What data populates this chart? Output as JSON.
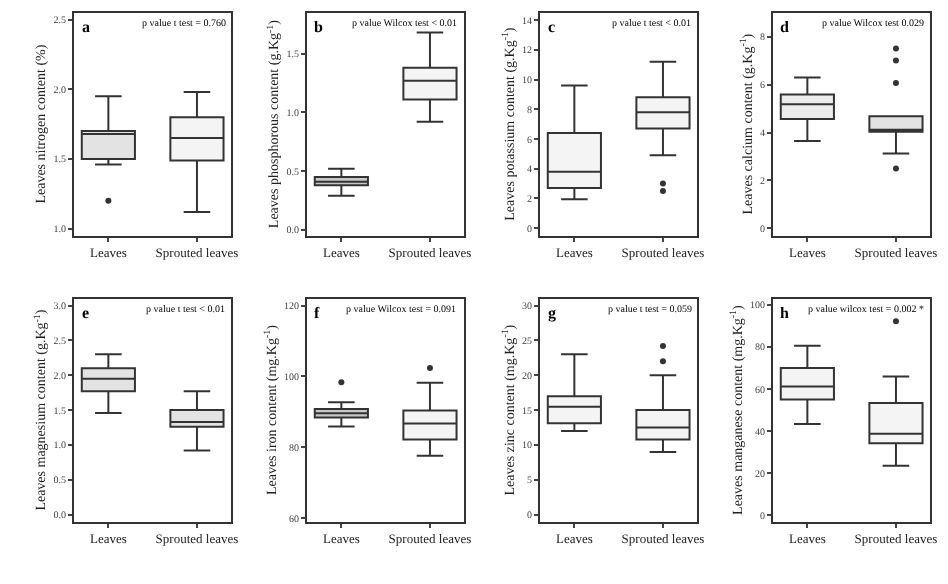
{
  "chart_data": [
    {
      "type": "box",
      "ylabel": "Leaves nitrogen content (%)",
      "annotations": [
        "a",
        "p value t test = 0.760"
      ],
      "categories": [
        "Leaves",
        "Sprouted leaves"
      ],
      "colors": [
        "#e3e3e3",
        "#f4f4f4"
      ],
      "ylim": [
        0.95,
        2.55
      ],
      "yticks": [
        {
          "value": 1.0,
          "label": "1.0"
        },
        1.5,
        {
          "value": 2.0,
          "label": "2.0"
        },
        2.5
      ],
      "boxes": [
        {
          "low": 1.46,
          "q1": 1.5,
          "median": 1.68,
          "q3": 1.7,
          "high": 1.95,
          "outliers": [
            1.2
          ]
        },
        {
          "low": 1.12,
          "q1": 1.49,
          "median": 1.65,
          "q3": 1.8,
          "high": 1.98
        }
      ]
    },
    {
      "type": "box",
      "ylabel": "Leaves phosphorous content (g.Kg$^{-1}$)",
      "annotations": [
        "b",
        "p value Wilcox test < 0.01"
      ],
      "categories": [
        "Leaves",
        "Sprouted leaves"
      ],
      "colors": [
        "#c8c8c8",
        "#f4f4f4"
      ],
      "ylim": [
        -0.05,
        1.85
      ],
      "yticks": [
        {
          "value": 0.0,
          "label": "0.0"
        },
        0.5,
        {
          "value": 1.0,
          "label": "1.0"
        },
        1.5
      ],
      "boxes": [
        {
          "low": 0.29,
          "q1": 0.38,
          "median": 0.41,
          "q3": 0.45,
          "high": 0.52
        },
        {
          "low": 0.92,
          "q1": 1.11,
          "median": 1.27,
          "q3": 1.38,
          "high": 1.68
        }
      ]
    },
    {
      "type": "box",
      "ylabel": "Leaves potassium content (g.Kg$^{-1}$)",
      "annotations": [
        "c",
        "p value t test < 0.01"
      ],
      "categories": [
        "Leaves",
        "Sprouted leaves"
      ],
      "colors": [
        "#f4f4f4",
        "#f4f4f4"
      ],
      "ylim": [
        -0.5,
        14.5
      ],
      "yticks": [
        0,
        2,
        4,
        6,
        8,
        10,
        12,
        14
      ],
      "boxes": [
        {
          "low": 1.95,
          "q1": 2.7,
          "median": 3.8,
          "q3": 6.4,
          "high": 9.6
        },
        {
          "low": 4.9,
          "q1": 6.7,
          "median": 7.8,
          "q3": 8.8,
          "high": 11.2,
          "outliers": [
            3.0,
            2.5
          ]
        }
      ]
    },
    {
      "type": "box",
      "ylabel": "Leaves calcium content (g.Kg$^{-1}$)",
      "annotations": [
        "d",
        "p value Wilcox test 0.029"
      ],
      "categories": [
        "Leaves",
        "Sprouted leaves"
      ],
      "colors": [
        "#ececec",
        "#e3e3e3"
      ],
      "ylim": [
        -0.3,
        9.0
      ],
      "yticks": [
        0,
        2,
        4,
        6,
        8
      ],
      "boxes": [
        {
          "low": 3.65,
          "q1": 4.56,
          "median": 5.18,
          "q3": 5.59,
          "high": 6.29
        },
        {
          "low": 3.12,
          "q1": 4.03,
          "median": 4.12,
          "q3": 4.68,
          "high": 4.68,
          "outliers": [
            2.5,
            6.06,
            7.0,
            7.5
          ]
        }
      ]
    },
    {
      "type": "box",
      "ylabel": "Leaves magnesium content (g.Kg$^{-1}$)",
      "annotations": [
        "e",
        "p value t test < 0.01"
      ],
      "categories": [
        "Leaves",
        "Sprouted leaves"
      ],
      "colors": [
        "#e3e3e3",
        "#e3e3e3"
      ],
      "ylim": [
        -0.1,
        3.1
      ],
      "yticks": [
        {
          "value": 0.0,
          "label": "0.0"
        },
        0.5,
        {
          "value": 1.0,
          "label": "1.0"
        },
        1.5,
        {
          "value": 2.0,
          "label": "2.0"
        },
        2.5,
        {
          "value": 3.0,
          "label": "3.0"
        }
      ],
      "boxes": [
        {
          "low": 1.46,
          "q1": 1.77,
          "median": 1.95,
          "q3": 2.1,
          "high": 2.3
        },
        {
          "low": 0.92,
          "q1": 1.26,
          "median": 1.33,
          "q3": 1.5,
          "high": 1.77
        }
      ]
    },
    {
      "type": "box",
      "ylabel": "Leaves iron content (mg.Kg$^{-1}$)",
      "annotations": [
        "f",
        "p value Wilcox test = 0.091"
      ],
      "categories": [
        "Leaves",
        "Sprouted leaves"
      ],
      "colors": [
        "#c8c8c8",
        "#f4f4f4"
      ],
      "ylim": [
        59,
        122
      ],
      "yticks": [
        60,
        80,
        100,
        120
      ],
      "boxes": [
        {
          "low": 85.9,
          "q1": 88.4,
          "median": 89.6,
          "q3": 90.8,
          "high": 92.7,
          "outliers": [
            98.4
          ]
        },
        {
          "low": 77.6,
          "q1": 82.2,
          "median": 86.7,
          "q3": 90.4,
          "high": 98.2,
          "outliers": [
            102.4
          ]
        }
      ]
    },
    {
      "type": "box",
      "ylabel": "Leaves zinc content (mg.Kg$^{-1}$)",
      "annotations": [
        "g",
        "p value t test = 0.059"
      ],
      "categories": [
        "Leaves",
        "Sprouted leaves"
      ],
      "colors": [
        "#f4f4f4",
        "#f4f4f4"
      ],
      "ylim": [
        -1,
        31
      ],
      "yticks": [
        0,
        5,
        10,
        15,
        20,
        25,
        30
      ],
      "boxes": [
        {
          "low": 12.0,
          "q1": 13.1,
          "median": 15.5,
          "q3": 17.0,
          "high": 23.0
        },
        {
          "low": 9.0,
          "q1": 10.8,
          "median": 12.5,
          "q3": 15.0,
          "high": 20.0,
          "outliers": [
            22.0,
            24.2
          ]
        }
      ]
    },
    {
      "type": "box",
      "ylabel": "Leaves manganese content (mg.Kg$^{-1}$)",
      "annotations": [
        "h",
        "p value wilcox test = 0.002 *"
      ],
      "categories": [
        "Leaves",
        "Sprouted leaves"
      ],
      "colors": [
        "#f4f4f4",
        "#f4f4f4"
      ],
      "ylim": [
        -3,
        103
      ],
      "yticks": [
        0,
        20,
        40,
        60,
        80,
        100
      ],
      "boxes": [
        {
          "low": 43.4,
          "q1": 55.0,
          "median": 61.2,
          "q3": 70.0,
          "high": 80.6
        },
        {
          "low": 23.6,
          "q1": 34.3,
          "median": 38.8,
          "q3": 53.4,
          "high": 66.0,
          "outliers": [
            92.2
          ]
        }
      ]
    }
  ]
}
